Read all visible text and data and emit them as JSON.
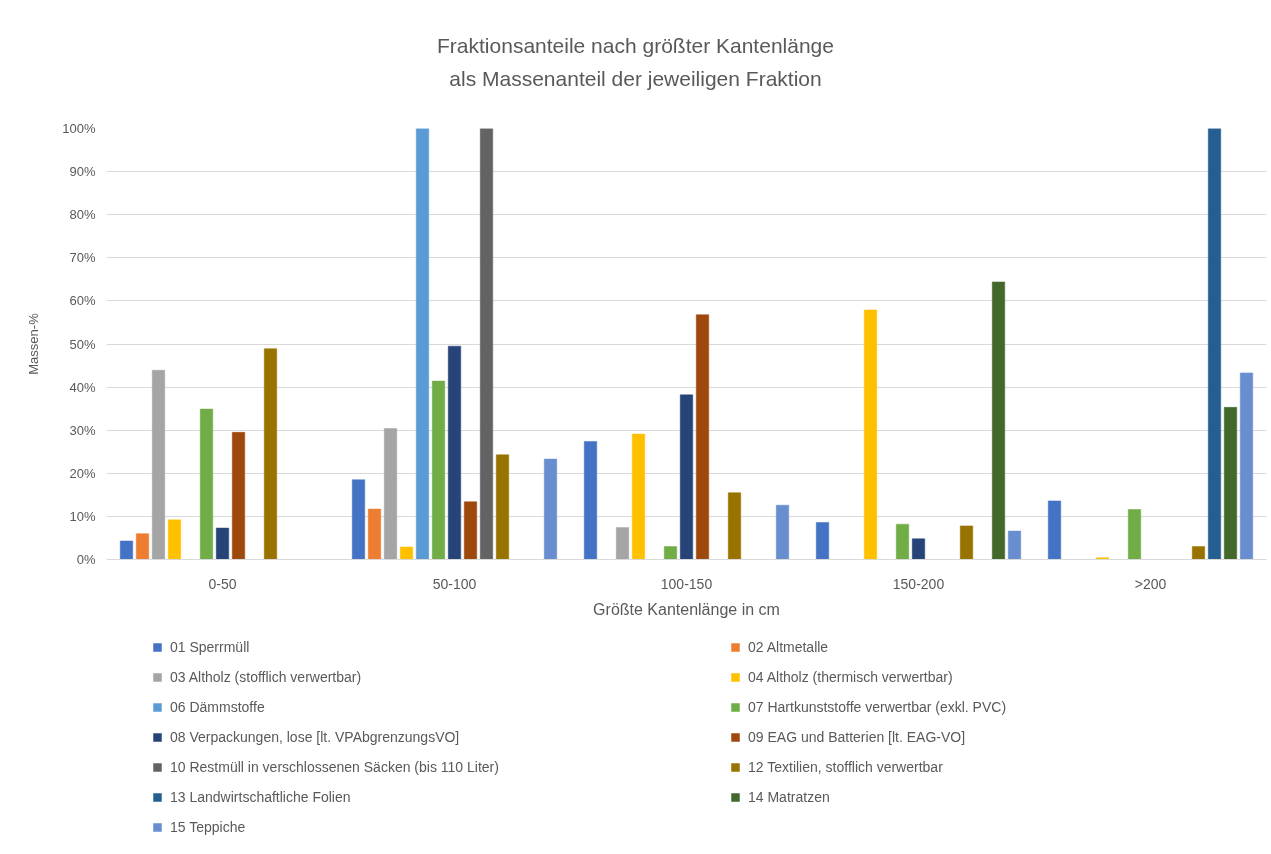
{
  "chart_data": {
    "type": "bar",
    "title": "Fraktionsanteile nach größter Kantenlänge",
    "subtitle": "als Massenanteil der jeweiligen Fraktion",
    "xlabel": "Größte Kantenlänge in cm",
    "ylabel": "Massen-%",
    "categories": [
      "0-50",
      "50-100",
      "100-150",
      "150-200",
      ">200"
    ],
    "series": [
      {
        "name": "01 Sperrmüll",
        "color": "#4472c4",
        "values": [
          4.3,
          18.5,
          27.4,
          8.6,
          13.6
        ]
      },
      {
        "name": "02 Altmetalle",
        "color": "#ed7d31",
        "values": [
          6.0,
          11.7,
          null,
          null,
          null
        ]
      },
      {
        "name": "03 Altholz (stofflich verwertbar)",
        "color": "#a5a5a5",
        "values": [
          43.9,
          30.4,
          7.4,
          null,
          null
        ]
      },
      {
        "name": "04 Altholz (thermisch verwertbar)",
        "color": "#ffc000",
        "values": [
          9.2,
          2.9,
          29.1,
          57.9,
          0.4
        ]
      },
      {
        "name": "06 Dämmstoffe",
        "color": "#5b9bd5",
        "values": [
          null,
          100,
          null,
          null,
          null
        ]
      },
      {
        "name": "07 Hartkunststoffe verwertbar (exkl. PVC)",
        "color": "#70ad47",
        "values": [
          34.9,
          41.4,
          3.0,
          8.2,
          11.6
        ]
      },
      {
        "name": "08 Verpackungen, lose [lt. VPAbgrenzungsVO]",
        "color": "#264478",
        "values": [
          7.3,
          49.5,
          38.2,
          4.8,
          null
        ]
      },
      {
        "name": "09 EAG und Batterien [lt. EAG-VO]",
        "color": "#9e480e",
        "values": [
          29.5,
          13.4,
          56.8,
          null,
          null
        ]
      },
      {
        "name": "10 Restmüll in verschlossenen Säcken (bis 110 Liter)",
        "color": "#636363",
        "values": [
          null,
          100,
          null,
          null,
          null
        ]
      },
      {
        "name": "12 Textilien, stofflich verwertbar",
        "color": "#997300",
        "values": [
          48.9,
          24.3,
          15.5,
          7.8,
          3.0
        ]
      },
      {
        "name": "13 Landwirtschaftliche Folien",
        "color": "#255e91",
        "values": [
          null,
          null,
          null,
          null,
          100
        ]
      },
      {
        "name": "14 Matratzen",
        "color": "#43682b",
        "values": [
          null,
          null,
          null,
          64.4,
          35.3
        ]
      },
      {
        "name": "15 Teppiche",
        "color": "#698ed0",
        "values": [
          null,
          23.3,
          12.6,
          6.6,
          43.3
        ]
      }
    ],
    "ylim": [
      0,
      100
    ],
    "yticks": [
      {
        "value": 0,
        "label": "0%"
      },
      {
        "value": 10,
        "label": "10%"
      },
      {
        "value": 20,
        "label": "20%"
      },
      {
        "value": 30,
        "label": "30%"
      },
      {
        "value": 40,
        "label": "40%"
      },
      {
        "value": 50,
        "label": "50%"
      },
      {
        "value": 60,
        "label": "60%"
      },
      {
        "value": 70,
        "label": "70%"
      },
      {
        "value": 80,
        "label": "80%"
      },
      {
        "value": 90,
        "label": "90%"
      },
      {
        "value": 100,
        "label": "100%"
      }
    ],
    "grid": "y",
    "legend": "bottom"
  }
}
